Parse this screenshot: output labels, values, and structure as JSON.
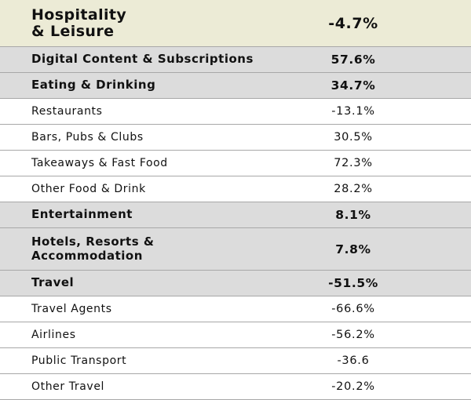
{
  "header": {
    "label_line1": "Hospitality",
    "label_line2": "& Leisure",
    "value": "-4.7%"
  },
  "rows": [
    {
      "label": "Digital Content & Subscriptions",
      "value": "57.6%",
      "level": "category"
    },
    {
      "label": "Eating & Drinking",
      "value": "34.7%",
      "level": "category"
    },
    {
      "label": "Restaurants",
      "value": "-13.1%",
      "level": "sub"
    },
    {
      "label": "Bars, Pubs & Clubs",
      "value": "30.5%",
      "level": "sub"
    },
    {
      "label": "Takeaways & Fast Food",
      "value": "72.3%",
      "level": "sub"
    },
    {
      "label": "Other Food & Drink",
      "value": "28.2%",
      "level": "sub"
    },
    {
      "label": "Entertainment",
      "value": "8.1%",
      "level": "category"
    },
    {
      "label_line1": "Hotels, Resorts &",
      "label_line2": "Accommodation",
      "value": "7.8%",
      "level": "category"
    },
    {
      "label": "Travel",
      "value": "-51.5%",
      "level": "category"
    },
    {
      "label": "Travel Agents",
      "value": "-66.6%",
      "level": "sub"
    },
    {
      "label": "Airlines",
      "value": "-56.2%",
      "level": "sub"
    },
    {
      "label": "Public Transport",
      "value": "-36.6",
      "level": "sub"
    },
    {
      "label": "Other Travel",
      "value": "-20.2%",
      "level": "sub"
    }
  ],
  "colors": {
    "header_bg": "#ecebd6",
    "category_bg": "#dcdcdc",
    "sub_bg": "#ffffff",
    "divider": "#a8a8a8"
  }
}
